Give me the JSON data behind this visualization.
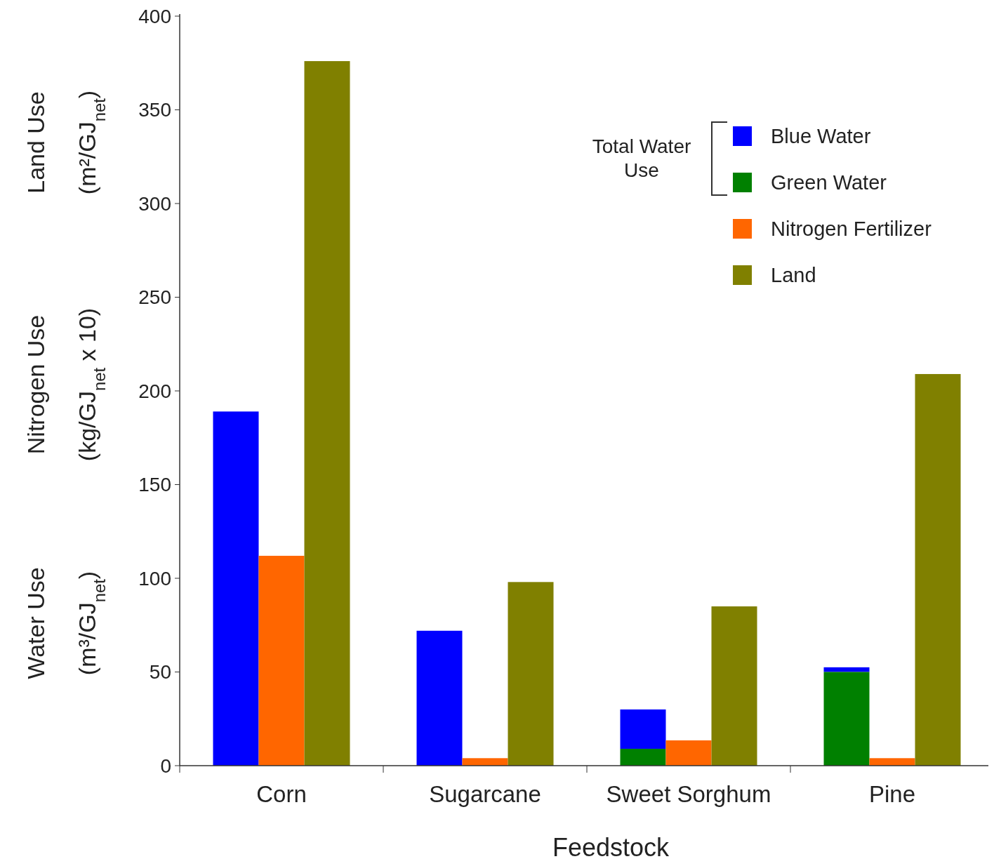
{
  "chart_data": {
    "type": "bar",
    "categories": [
      "Corn",
      "Sugarcane",
      "Sweet Sorghum",
      "Pine"
    ],
    "series": [
      {
        "name": "Blue Water",
        "color": "#0000ff",
        "values": [
          189,
          72,
          21,
          2.5
        ],
        "base": [
          0,
          0,
          9,
          50
        ]
      },
      {
        "name": "Green Water",
        "color": "#008000",
        "values": [
          0,
          0,
          9,
          50
        ]
      },
      {
        "name": "Nitrogen Fertilizer",
        "color": "#ff6600",
        "values": [
          112,
          4,
          13.5,
          4
        ]
      },
      {
        "name": "Land",
        "color": "#808000",
        "values": [
          376,
          98,
          85,
          209
        ]
      }
    ],
    "xlabel": "Feedstock",
    "ylabel": "Water Use (m³/GJ$_{net}$)",
    "annotations": [
      "Nitrogen Use (kg/GJ$_{net}$ x 10)",
      "Land Use (m²/GJ$_{net}$)",
      "Total Water Use"
    ],
    "ylim": [
      0,
      400
    ],
    "yticks": [
      0,
      50,
      100,
      150,
      200,
      250,
      300,
      350,
      400
    ],
    "legend": "top right",
    "grid": false
  }
}
